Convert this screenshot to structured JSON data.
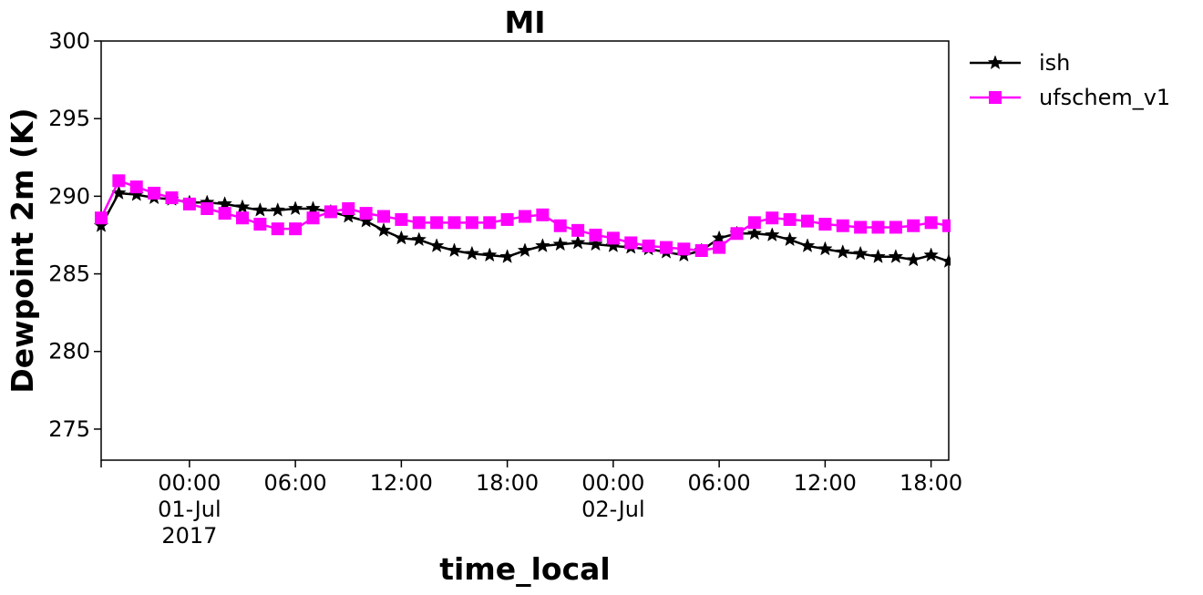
{
  "chart_data": {
    "type": "line",
    "title": "MI",
    "xlabel": "time_local",
    "ylabel": "Dewpoint 2m (K)",
    "ylim": [
      273,
      300
    ],
    "y_ticks": [
      275,
      280,
      285,
      290,
      295,
      300
    ],
    "x_start_hours": -5,
    "x_end_hours": 43,
    "x_tick_labels": [
      {
        "hours": 0,
        "lines": [
          "00:00",
          "01-Jul",
          "2017"
        ]
      },
      {
        "hours": 6,
        "lines": [
          "06:00"
        ]
      },
      {
        "hours": 12,
        "lines": [
          "12:00"
        ]
      },
      {
        "hours": 18,
        "lines": [
          "18:00"
        ]
      },
      {
        "hours": 24,
        "lines": [
          "00:00",
          "02-Jul"
        ]
      },
      {
        "hours": 30,
        "lines": [
          "06:00"
        ]
      },
      {
        "hours": 36,
        "lines": [
          "12:00"
        ]
      },
      {
        "hours": 42,
        "lines": [
          "18:00"
        ]
      }
    ],
    "legend_position": "outside-top-right",
    "series": [
      {
        "name": "ish",
        "color": "#000000",
        "marker": "star",
        "x": [
          -5,
          -4,
          -3,
          -2,
          -1,
          0,
          1,
          2,
          3,
          4,
          5,
          6,
          7,
          8,
          9,
          10,
          11,
          12,
          13,
          14,
          15,
          16,
          17,
          18,
          19,
          20,
          21,
          22,
          23,
          24,
          25,
          26,
          27,
          28,
          29,
          30,
          31,
          32,
          33,
          34,
          35,
          36,
          37,
          38,
          39,
          40,
          41,
          42,
          43
        ],
        "values": [
          288.1,
          290.2,
          290.1,
          289.9,
          289.8,
          289.6,
          289.6,
          289.5,
          289.3,
          289.1,
          289.1,
          289.2,
          289.2,
          289.0,
          288.7,
          288.4,
          287.8,
          287.3,
          287.2,
          286.8,
          286.5,
          286.3,
          286.2,
          286.1,
          286.5,
          286.8,
          286.9,
          287.0,
          286.9,
          286.8,
          286.7,
          286.6,
          286.4,
          286.2,
          286.5,
          287.3,
          287.6,
          287.6,
          287.5,
          287.2,
          286.8,
          286.6,
          286.4,
          286.3,
          286.1,
          286.1,
          285.9,
          286.2,
          285.8
        ]
      },
      {
        "name": "ufschem_v1",
        "color": "#ff00ff",
        "marker": "square",
        "x": [
          -5,
          -4,
          -3,
          -2,
          -1,
          0,
          1,
          2,
          3,
          4,
          5,
          6,
          7,
          8,
          9,
          10,
          11,
          12,
          13,
          14,
          15,
          16,
          17,
          18,
          19,
          20,
          21,
          22,
          23,
          24,
          25,
          26,
          27,
          28,
          29,
          30,
          31,
          32,
          33,
          34,
          35,
          36,
          37,
          38,
          39,
          40,
          41,
          42,
          43
        ],
        "values": [
          288.6,
          291.0,
          290.6,
          290.2,
          289.9,
          289.5,
          289.2,
          288.9,
          288.6,
          288.2,
          287.9,
          287.9,
          288.6,
          289.0,
          289.2,
          288.9,
          288.7,
          288.5,
          288.3,
          288.3,
          288.3,
          288.3,
          288.3,
          288.5,
          288.7,
          288.8,
          288.1,
          287.8,
          287.5,
          287.3,
          287.0,
          286.8,
          286.7,
          286.6,
          286.5,
          286.7,
          287.6,
          288.3,
          288.6,
          288.5,
          288.4,
          288.2,
          288.1,
          288.0,
          288.0,
          288.0,
          288.1,
          288.3,
          288.1
        ]
      }
    ]
  }
}
